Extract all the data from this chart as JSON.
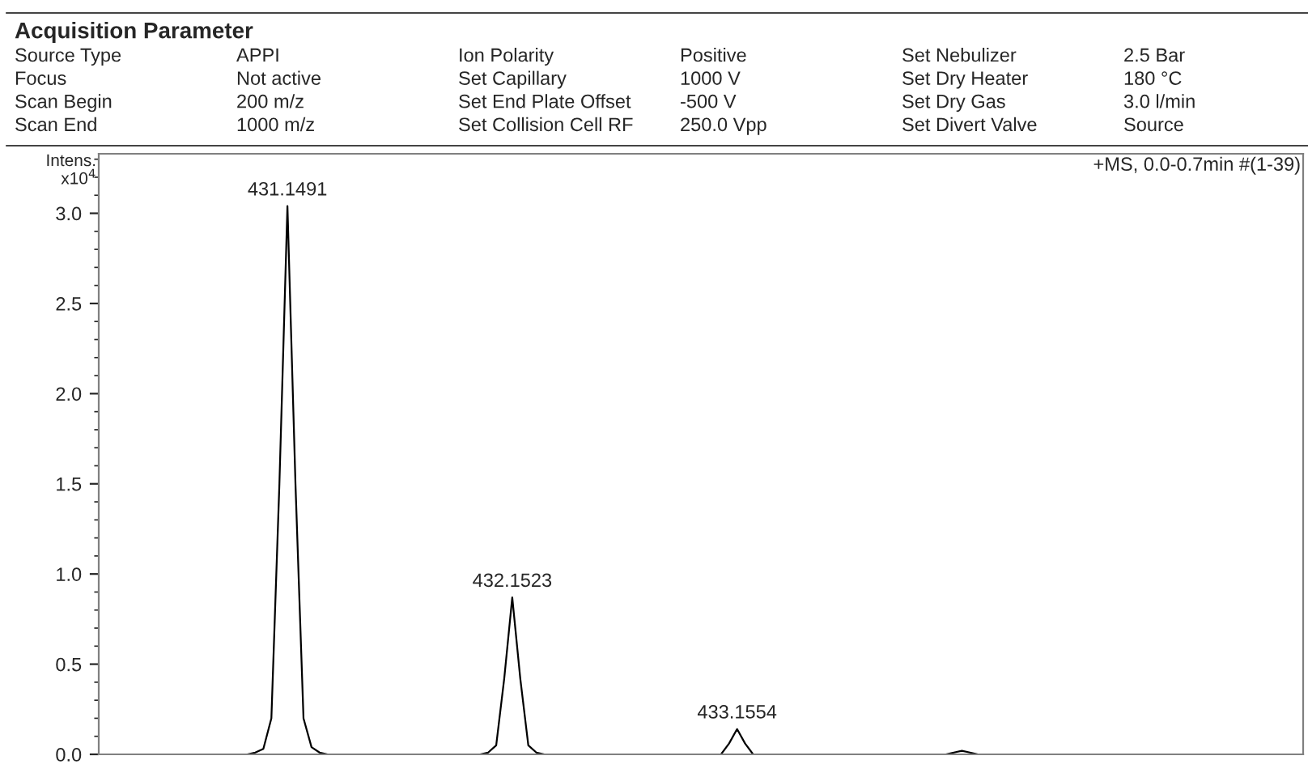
{
  "chart_data": {
    "type": "line",
    "title": "Acquisition Parameter",
    "ylabel": "Intens.\nx10$^{4}$",
    "categories": [
      null,
      null,
      null,
      null,
      null,
      null,
      null,
      null,
      null,
      null,
      null,
      null,
      null,
      null,
      null,
      null,
      null,
      null,
      null,
      null,
      null,
      null,
      null,
      null,
      null,
      null,
      null,
      null,
      null,
      null,
      null,
      null,
      null,
      null,
      null,
      null,
      null,
      null,
      null,
      null,
      null,
      null,
      null,
      null,
      null,
      null,
      null,
      null,
      null,
      null,
      null,
      null,
      null,
      null,
      null,
      null,
      null,
      null,
      null,
      null,
      null,
      null,
      null,
      null,
      null,
      null,
      null,
      null,
      null,
      null,
      null,
      null,
      null,
      null,
      null,
      null,
      null,
      null,
      null,
      null,
      null,
      null,
      null,
      null,
      null,
      null,
      null,
      null,
      null,
      null,
      null,
      null,
      null,
      null,
      null,
      null,
      null,
      null,
      null,
      null,
      null,
      null,
      null,
      null,
      null,
      null,
      null,
      null,
      null,
      null,
      null,
      null,
      null,
      null,
      null,
      null,
      null,
      null,
      null,
      null,
      null,
      null,
      null,
      null,
      null,
      null,
      null,
      null,
      null,
      null,
      null,
      null,
      null,
      null,
      null,
      null,
      null,
      null,
      null,
      null,
      null,
      null,
      null,
      null,
      null,
      null,
      null,
      null,
      null,
      null
    ],
    "series": [
      {
        "color": "#000000",
        "values": [
          0,
          0,
          0,
          0,
          0,
          0,
          0,
          0,
          0,
          0,
          0,
          0,
          0,
          0,
          0,
          0,
          0,
          0,
          0,
          0.01,
          0.03,
          0.2,
          1.5,
          3.04,
          1.5,
          0.2,
          0.04,
          0.01,
          0,
          0,
          0,
          0,
          0,
          0,
          0,
          0,
          0,
          0,
          0,
          0,
          0,
          0,
          0,
          0,
          0,
          0,
          0,
          0,
          0.01,
          0.05,
          0.42,
          0.87,
          0.42,
          0.05,
          0.01,
          0,
          0,
          0,
          0,
          0,
          0,
          0,
          0,
          0,
          0,
          0,
          0,
          0,
          0,
          0,
          0,
          0,
          0,
          0,
          0,
          0,
          0,
          0,
          0.06,
          0.14,
          0.06,
          0,
          0,
          0,
          0,
          0,
          0,
          0,
          0,
          0,
          0,
          0,
          0,
          0,
          0,
          0,
          0,
          0,
          0,
          0,
          0,
          0,
          0,
          0,
          0,
          0,
          0.01,
          0.02,
          0.01,
          0,
          0,
          0,
          0,
          0,
          0,
          0,
          0,
          0,
          0,
          0,
          0,
          0,
          0,
          0,
          0,
          0,
          0,
          0,
          0,
          0,
          0,
          0,
          0,
          0,
          0,
          0,
          0,
          0,
          0,
          0,
          0,
          0,
          0,
          0,
          0,
          0,
          0,
          0,
          0,
          0
        ]
      }
    ],
    "ylim": [
      0,
      3.33
    ],
    "yticks": [
      {
        "value": 0,
        "label": "0.0"
      },
      {
        "value": 0.5,
        "label": "0.5"
      },
      {
        "value": 1,
        "label": "1.0"
      },
      {
        "value": 1.5,
        "label": "1.5"
      },
      {
        "value": 2,
        "label": "2.0"
      },
      {
        "value": 2.5,
        "label": "2.5"
      },
      {
        "value": 3,
        "label": "3.0"
      }
    ],
    "tick_labels": "y",
    "grid": false,
    "legend": false,
    "annotations": [
      "Source Type",
      "APPI",
      "Ion Polarity",
      "Positive",
      "Set Nebulizer",
      "2.5 Bar",
      "Focus",
      "Not active",
      "Set Capillary",
      "1000 V",
      "Set Dry Heater",
      "180 °C",
      "Scan Begin",
      "200 m/z",
      "Set End Plate Offset",
      "-500 V",
      "Set Dry Gas",
      "3.0 l/min",
      "Scan End",
      "1000 m/z",
      "Set Collision Cell RF",
      "250.0 Vpp",
      "Set Divert Valve",
      "Source",
      "+MS, 0.0-0.7min #(1-39)",
      {
        "text": "431.1491",
        "y": 3.04
      },
      {
        "text": "432.1523",
        "y": 0.87
      },
      {
        "text": "433.1554",
        "y": 0.14
      }
    ]
  }
}
